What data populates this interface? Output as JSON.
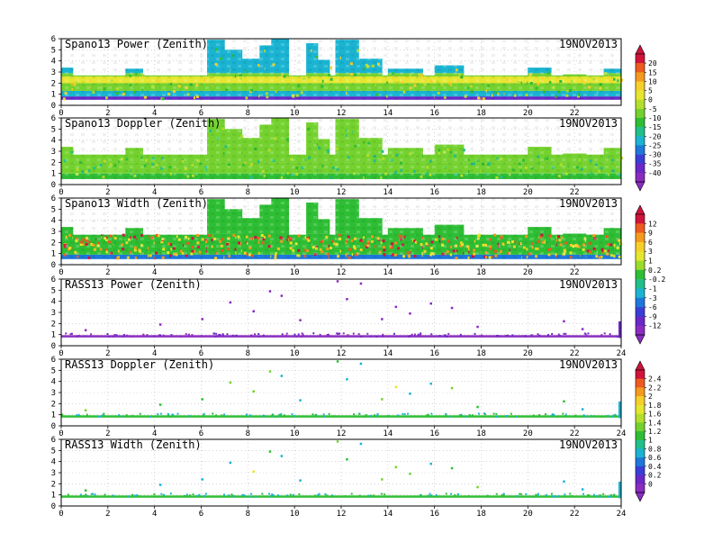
{
  "chart_data": [
    {
      "type": "heatmap",
      "title": "Spano13 Power (Zenith)",
      "date": "19NOV2013",
      "colorbar_group": 1
    },
    {
      "type": "heatmap",
      "title": "Spano13 Doppler (Zenith)",
      "date": "19NOV2013",
      "colorbar_group": 1
    },
    {
      "type": "heatmap",
      "title": "Spano13 Width (Zenith)",
      "date": "19NOV2013",
      "colorbar_group": 2
    },
    {
      "type": "heatmap",
      "title": "RASS13 Power (Zenith)",
      "date": "19NOV2013",
      "colorbar_group": 2
    },
    {
      "type": "heatmap",
      "title": "RASS13 Doppler (Zenith)",
      "date": "19NOV2013",
      "colorbar_group": 3
    },
    {
      "type": "heatmap",
      "title": "RASS13 Width (Zenith)",
      "date": "19NOV2013",
      "colorbar_group": 3
    }
  ],
  "axes": {
    "xlim": [
      0,
      24
    ],
    "ylim": [
      0,
      6
    ],
    "xticks": [
      "0",
      "2",
      "4",
      "6",
      "8",
      "10",
      "12",
      "14",
      "16",
      "18",
      "20",
      "22"
    ],
    "xticks_full": [
      "0",
      "2",
      "4",
      "6",
      "8",
      "10",
      "12",
      "14",
      "16",
      "18",
      "20",
      "22",
      "24"
    ],
    "yticks": [
      "0",
      "1",
      "2",
      "3",
      "4",
      "5",
      "6"
    ],
    "grid": true
  },
  "colorbars": [
    {
      "name": "colorbar-1",
      "ticks": [
        "20",
        "15",
        "10",
        "5",
        "0",
        "-5",
        "-10",
        "-15",
        "-20",
        "-25",
        "-30",
        "-35",
        "-40"
      ],
      "colors": [
        "#d0143c",
        "#ee5a20",
        "#f59a1e",
        "#f7cf2a",
        "#e6e62e",
        "#b4de2c",
        "#74d22e",
        "#2ebe34",
        "#20c08a",
        "#1ab4d2",
        "#1e78dc",
        "#3a3ed8",
        "#6a28c8",
        "#8a2cc0"
      ]
    },
    {
      "name": "colorbar-2",
      "ticks": [
        "12",
        "9",
        "6",
        "3",
        "1",
        "0.2",
        "-0.2",
        "-1",
        "-3",
        "-6",
        "-9",
        "-12"
      ],
      "colors": [
        "#d0143c",
        "#ee5a20",
        "#f59a1e",
        "#f7cf2a",
        "#e6e62e",
        "#9adc2c",
        "#2ebe34",
        "#20c08a",
        "#1ab4d2",
        "#1e78dc",
        "#3a3ed8",
        "#6a28c8",
        "#8a2cc0"
      ]
    },
    {
      "name": "colorbar-3",
      "ticks": [
        "2.4",
        "2.2",
        "2",
        "1.8",
        "1.6",
        "1.4",
        "1.2",
        "1",
        "0.8",
        "0.6",
        "0.4",
        "0.2",
        "0"
      ],
      "colors": [
        "#d0143c",
        "#ee5a20",
        "#f59a1e",
        "#f7cf2a",
        "#e6e62e",
        "#b4de2c",
        "#74d22e",
        "#2ebe34",
        "#20c08a",
        "#1ab4d2",
        "#1e78dc",
        "#3a3ed8",
        "#6a28c8",
        "#8a2cc0"
      ]
    }
  ]
}
